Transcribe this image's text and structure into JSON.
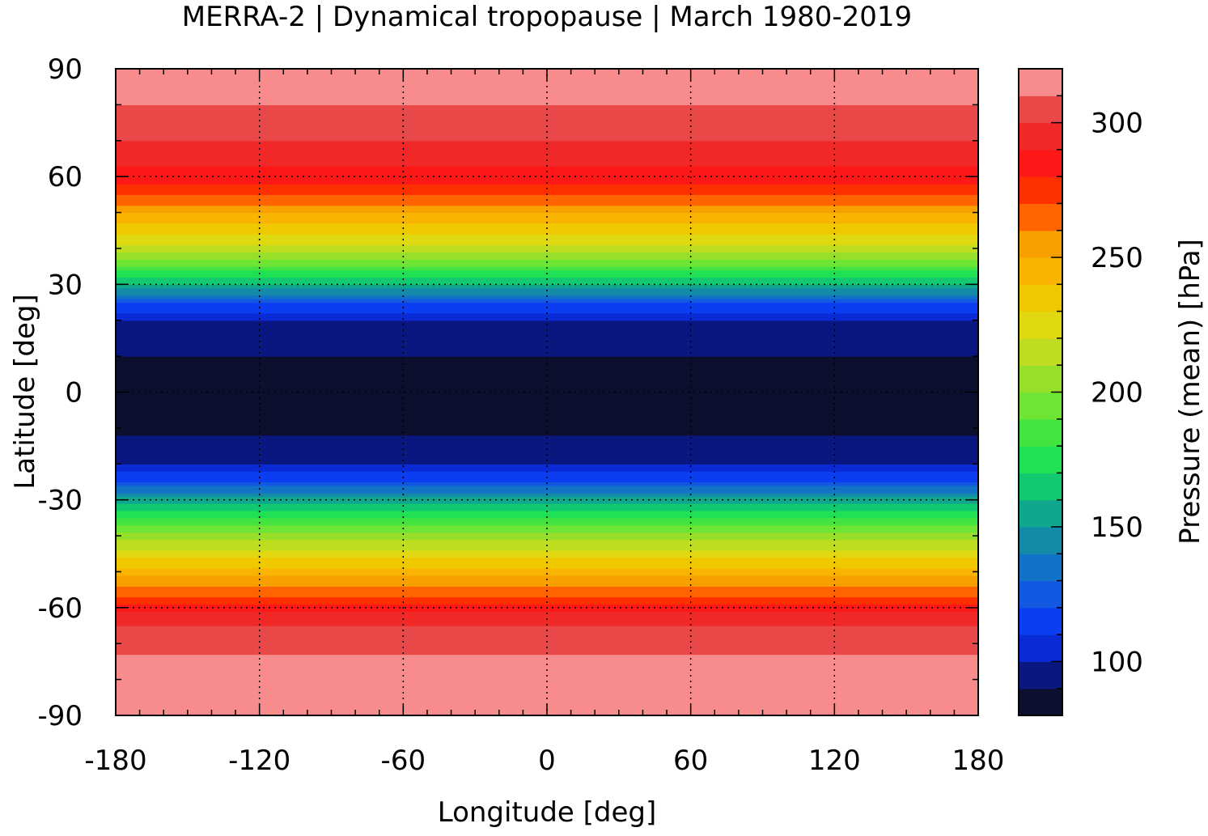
{
  "chart_data": {
    "type": "heatmap",
    "title": "MERRA-2 | Dynamical tropopause | March 1980-2019",
    "xlabel": "Longitude [deg]",
    "ylabel": "Latitude [deg]",
    "colorbar_label": "Pressure (mean) [hPa]",
    "xlim": [
      -180,
      180
    ],
    "ylim": [
      -90,
      90
    ],
    "x_ticks": [
      -180,
      -120,
      -60,
      0,
      60,
      120,
      180
    ],
    "x_tick_labels": [
      "-180",
      "-120",
      "-60",
      "0",
      "60",
      "120",
      "180"
    ],
    "y_ticks": [
      -90,
      -60,
      -30,
      0,
      30,
      60,
      90
    ],
    "y_tick_labels": [
      "-90",
      "-60",
      "-30",
      "0",
      "30",
      "60",
      "90"
    ],
    "grid": true,
    "colorbar": {
      "range": [
        80,
        320
      ],
      "ticks": [
        100,
        150,
        200,
        250,
        300
      ],
      "tick_labels": [
        "100",
        "150",
        "200",
        "250",
        "300"
      ],
      "levels": [
        80,
        90,
        100,
        110,
        120,
        130,
        140,
        150,
        160,
        170,
        180,
        190,
        200,
        210,
        220,
        230,
        240,
        250,
        260,
        270,
        280,
        290,
        300,
        310,
        320
      ],
      "colors": [
        "#0c0f2e",
        "#0a1780",
        "#0a2ad6",
        "#0b3ef0",
        "#1358e0",
        "#1272c8",
        "#128aa8",
        "#10a88c",
        "#12c870",
        "#20e054",
        "#44e440",
        "#6ee434",
        "#96e02c",
        "#c0dc20",
        "#e0d810",
        "#f0c800",
        "#f8b400",
        "#f8a000",
        "#ff6400",
        "#ff3000",
        "#ff1818",
        "#f02828",
        "#e84848",
        "#f88c8c",
        "#ffcccc"
      ]
    },
    "zonal_mean_profile": {
      "description_units": "hPa",
      "lat": [
        -90,
        -80,
        -70,
        -62,
        -58,
        -50,
        -40,
        -30,
        -25,
        -20,
        -10,
        0,
        10,
        20,
        25,
        30,
        40,
        50,
        55,
        60,
        70,
        80,
        90
      ],
      "pressure": [
        318,
        315,
        308,
        295,
        275,
        245,
        205,
        155,
        120,
        100,
        88,
        85,
        90,
        100,
        120,
        160,
        215,
        250,
        270,
        285,
        300,
        310,
        312
      ]
    }
  }
}
